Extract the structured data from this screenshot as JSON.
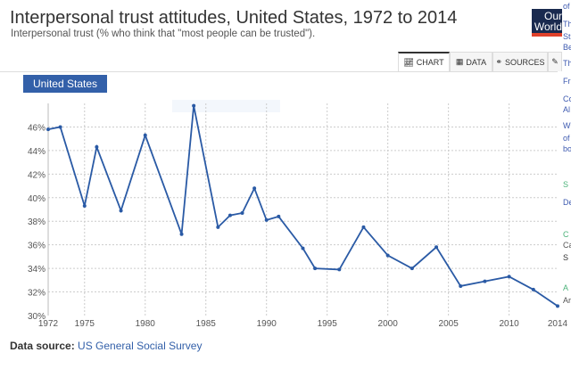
{
  "header": {
    "title": "Interpersonal trust attitudes, United States, 1972 to 2014",
    "subtitle": "Interpersonal trust (% who think that \"most people can be trusted\").",
    "logo": "Our World in Data"
  },
  "tabs": [
    {
      "label": "CHART",
      "icon": "line-chart-icon",
      "active": true
    },
    {
      "label": "DATA",
      "icon": "table-icon",
      "active": false
    },
    {
      "label": "SOURCES",
      "icon": "link-icon",
      "active": false
    }
  ],
  "entity_button": "United States",
  "footer": {
    "label": "Data source:",
    "source": "US General Social Survey"
  },
  "sidebar_fragments": [
    "of",
    "Th",
    "St",
    "Be",
    "Th",
    "Fr",
    "Co",
    "Al",
    "W",
    "of",
    "bo",
    "S",
    "De",
    "C",
    "Ca",
    "S",
    "A",
    "Ar"
  ],
  "colors": {
    "series": "#2a5aa5",
    "entity": "#3360a9",
    "grid": "#cccccc"
  },
  "chart_data": {
    "type": "line",
    "title": "Interpersonal trust attitudes, United States, 1972 to 2014",
    "subtitle": "Interpersonal trust (% who think that \"most people can be trusted\").",
    "xlim": [
      1972,
      2014
    ],
    "ylim": [
      30,
      48
    ],
    "grid": true,
    "x_ticks": [
      "1972",
      "1975",
      "1980",
      "1985",
      "1990",
      "1995",
      "2000",
      "2005",
      "2010",
      "2014"
    ],
    "y_ticks": [
      "30%",
      "32%",
      "34%",
      "36%",
      "38%",
      "40%",
      "42%",
      "44%",
      "46%"
    ],
    "series": [
      {
        "name": "United States",
        "x": [
          1972,
          1973,
          1975,
          1976,
          1978,
          1980,
          1983,
          1984,
          1986,
          1987,
          1988,
          1989,
          1990,
          1991,
          1993,
          1994,
          1996,
          1998,
          2000,
          2002,
          2004,
          2006,
          2008,
          2010,
          2012,
          2014
        ],
        "y": [
          45.8,
          46.0,
          39.3,
          44.3,
          38.9,
          45.3,
          36.9,
          47.8,
          37.5,
          38.5,
          38.7,
          40.8,
          38.1,
          38.4,
          35.7,
          34.0,
          33.9,
          37.5,
          35.1,
          34.0,
          35.8,
          32.5,
          32.9,
          33.3,
          32.2,
          30.8
        ]
      }
    ]
  }
}
